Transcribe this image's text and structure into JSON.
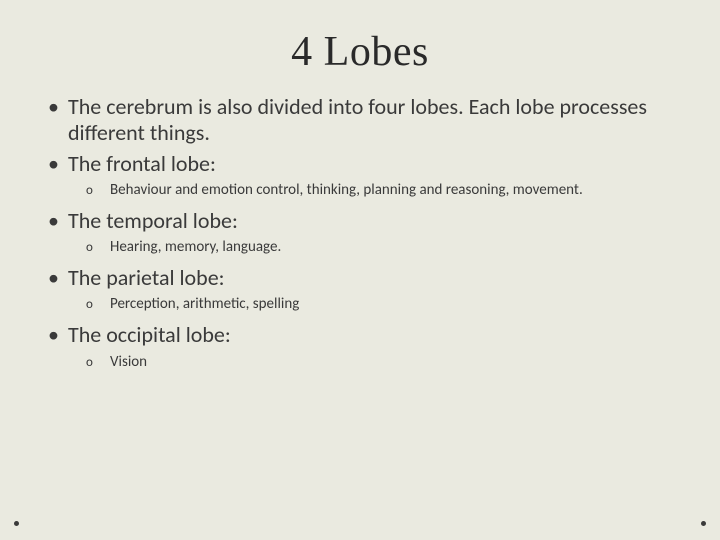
{
  "slide": {
    "background_color": "#eaeae0",
    "text_color": "#3a3a3a",
    "title": "4 Lobes",
    "title_fontsize": 42,
    "body_fontsize_l1": 22,
    "body_fontsize_l2": 15,
    "bullets": [
      {
        "level": 1,
        "text": "The cerebrum is also divided into four lobes. Each lobe processes different things."
      },
      {
        "level": 1,
        "text": "The frontal lobe:"
      },
      {
        "level": 2,
        "text": "Behaviour and emotion control, thinking, planning and reasoning, movement."
      },
      {
        "level": 1,
        "text": "The temporal lobe:"
      },
      {
        "level": 2,
        "text": "Hearing, memory, language."
      },
      {
        "level": 1,
        "text": "The parietal lobe:"
      },
      {
        "level": 2,
        "text": "Perception, arithmetic, spelling"
      },
      {
        "level": 1,
        "text": "The occipital lobe:"
      },
      {
        "level": 2,
        "text": "Vision"
      }
    ],
    "corner_dot_color": "#3a3a3a"
  }
}
